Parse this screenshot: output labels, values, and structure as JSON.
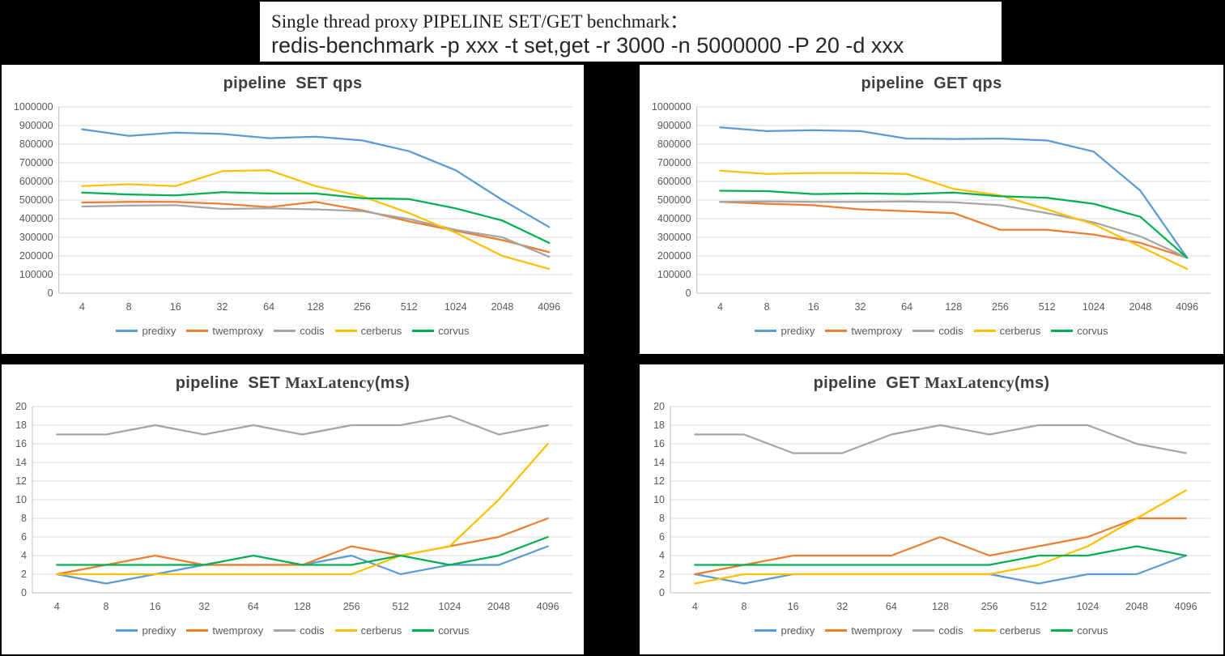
{
  "header": {
    "line1": "Single thread proxy PIPELINE SET/GET benchmark：",
    "line2": "redis-benchmark -p xxx -t set,get -r 3000 -n 5000000 -P 20 -d xxx"
  },
  "chart_data": [
    {
      "type": "line",
      "title_sans_before": "pipeline  SET qps",
      "title_serif": "",
      "title_sans_after": "",
      "ylim": [
        0,
        1000000
      ],
      "y_step": 100000,
      "grid": true,
      "legend_position": "bottom",
      "categories": [
        "4",
        "8",
        "16",
        "32",
        "64",
        "128",
        "256",
        "512",
        "1024",
        "2048",
        "4096"
      ],
      "series": [
        {
          "name": "predixy",
          "color": "#5B9BD5",
          "values": [
            880000,
            845000,
            862000,
            855000,
            832000,
            840000,
            820000,
            762000,
            660000,
            500000,
            355000
          ]
        },
        {
          "name": "twemproxy",
          "color": "#ED7D31",
          "values": [
            487000,
            490000,
            490000,
            480000,
            462000,
            490000,
            445000,
            385000,
            335000,
            285000,
            220000
          ]
        },
        {
          "name": "codis",
          "color": "#A5A5A5",
          "values": [
            465000,
            470000,
            472000,
            452000,
            455000,
            450000,
            440000,
            398000,
            340000,
            300000,
            195000
          ]
        },
        {
          "name": "cerberus",
          "color": "#FFC000",
          "values": [
            575000,
            585000,
            575000,
            655000,
            660000,
            575000,
            520000,
            430000,
            325000,
            200000,
            130000
          ]
        },
        {
          "name": "corvus",
          "color": "#00B050",
          "values": [
            540000,
            530000,
            525000,
            542000,
            535000,
            535000,
            510000,
            505000,
            455000,
            390000,
            270000
          ]
        }
      ]
    },
    {
      "type": "line",
      "title_sans_before": "pipeline  GET qps",
      "title_serif": "",
      "title_sans_after": "",
      "ylim": [
        0,
        1000000
      ],
      "y_step": 100000,
      "grid": true,
      "legend_position": "bottom",
      "categories": [
        "4",
        "8",
        "16",
        "32",
        "64",
        "128",
        "256",
        "512",
        "1024",
        "2048",
        "4096"
      ],
      "series": [
        {
          "name": "predixy",
          "color": "#5B9BD5",
          "values": [
            890000,
            870000,
            875000,
            870000,
            830000,
            828000,
            830000,
            820000,
            760000,
            550000,
            190000
          ]
        },
        {
          "name": "twemproxy",
          "color": "#ED7D31",
          "values": [
            490000,
            480000,
            472000,
            450000,
            440000,
            430000,
            340000,
            340000,
            315000,
            270000,
            190000
          ]
        },
        {
          "name": "codis",
          "color": "#A5A5A5",
          "values": [
            490000,
            492000,
            490000,
            490000,
            492000,
            488000,
            472000,
            430000,
            380000,
            305000,
            190000
          ]
        },
        {
          "name": "cerberus",
          "color": "#FFC000",
          "values": [
            658000,
            640000,
            645000,
            645000,
            640000,
            560000,
            525000,
            450000,
            370000,
            250000,
            130000
          ]
        },
        {
          "name": "corvus",
          "color": "#00B050",
          "values": [
            550000,
            548000,
            532000,
            535000,
            532000,
            540000,
            520000,
            512000,
            480000,
            410000,
            190000
          ]
        }
      ]
    },
    {
      "type": "line",
      "title_sans_before": "pipeline  SET ",
      "title_serif": "MaxLatency",
      "title_sans_after": "(ms)",
      "ylim": [
        0,
        20
      ],
      "y_step": 2,
      "grid": true,
      "legend_position": "bottom",
      "categories": [
        "4",
        "8",
        "16",
        "32",
        "64",
        "128",
        "256",
        "512",
        "1024",
        "2048",
        "4096"
      ],
      "series": [
        {
          "name": "predixy",
          "color": "#5B9BD5",
          "values": [
            2,
            1,
            2,
            3,
            3,
            3,
            4,
            2,
            3,
            3,
            5
          ]
        },
        {
          "name": "twemproxy",
          "color": "#ED7D31",
          "values": [
            2,
            3,
            4,
            3,
            3,
            3,
            5,
            4,
            5,
            6,
            8
          ]
        },
        {
          "name": "codis",
          "color": "#A5A5A5",
          "values": [
            17,
            17,
            18,
            17,
            18,
            17,
            18,
            18,
            19,
            17,
            18
          ]
        },
        {
          "name": "cerberus",
          "color": "#FFC000",
          "values": [
            2,
            2,
            2,
            2,
            2,
            2,
            2,
            4,
            5,
            10,
            16
          ]
        },
        {
          "name": "corvus",
          "color": "#00B050",
          "values": [
            3,
            3,
            3,
            3,
            4,
            3,
            3,
            4,
            3,
            4,
            6
          ]
        }
      ]
    },
    {
      "type": "line",
      "title_sans_before": "pipeline  GET ",
      "title_serif": "MaxLatency",
      "title_sans_after": "(ms)",
      "ylim": [
        0,
        20
      ],
      "y_step": 2,
      "grid": true,
      "legend_position": "bottom",
      "categories": [
        "4",
        "8",
        "16",
        "32",
        "64",
        "128",
        "256",
        "512",
        "1024",
        "2048",
        "4096"
      ],
      "series": [
        {
          "name": "predixy",
          "color": "#5B9BD5",
          "values": [
            2,
            1,
            2,
            2,
            2,
            2,
            2,
            1,
            2,
            2,
            4
          ]
        },
        {
          "name": "twemproxy",
          "color": "#ED7D31",
          "values": [
            2,
            3,
            4,
            4,
            4,
            6,
            4,
            5,
            6,
            8,
            8
          ]
        },
        {
          "name": "codis",
          "color": "#A5A5A5",
          "values": [
            17,
            17,
            15,
            15,
            17,
            18,
            17,
            18,
            18,
            16,
            15
          ]
        },
        {
          "name": "cerberus",
          "color": "#FFC000",
          "values": [
            1,
            2,
            2,
            2,
            2,
            2,
            2,
            3,
            5,
            8,
            11
          ]
        },
        {
          "name": "corvus",
          "color": "#00B050",
          "values": [
            3,
            3,
            3,
            3,
            3,
            3,
            3,
            4,
            4,
            5,
            4
          ]
        }
      ]
    }
  ]
}
